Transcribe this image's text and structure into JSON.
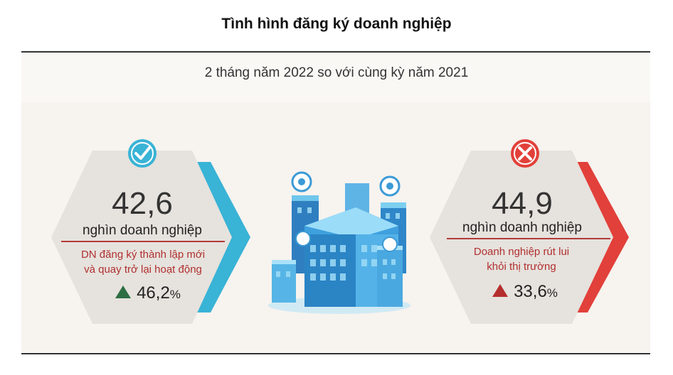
{
  "header": {
    "title": "Tình hình đăng ký doanh nghiệp",
    "subtitle": "2 tháng năm 2022 so với cùng kỳ năm 2021"
  },
  "left_card": {
    "icon": "check-icon",
    "value": "42,6",
    "unit": "nghìn doanh nghiệp",
    "description_line1": "DN đăng ký thành lập mới",
    "description_line2": "và quay trở lại hoạt động",
    "growth_value": "46,2",
    "growth_unit": "%",
    "accent_color": "#39b3d6",
    "trend_color": "#2d6e43"
  },
  "right_card": {
    "icon": "cross-icon",
    "value": "44,9",
    "unit": "nghìn doanh nghiệp",
    "description_line1": "Doanh nghiệp rút lui",
    "description_line2": "khỏi thị trường",
    "growth_value": "33,6",
    "growth_unit": "%",
    "accent_color": "#e2403a",
    "trend_color": "#b52e2e"
  },
  "center_illustration": {
    "icon": "city-buildings-illustration"
  }
}
